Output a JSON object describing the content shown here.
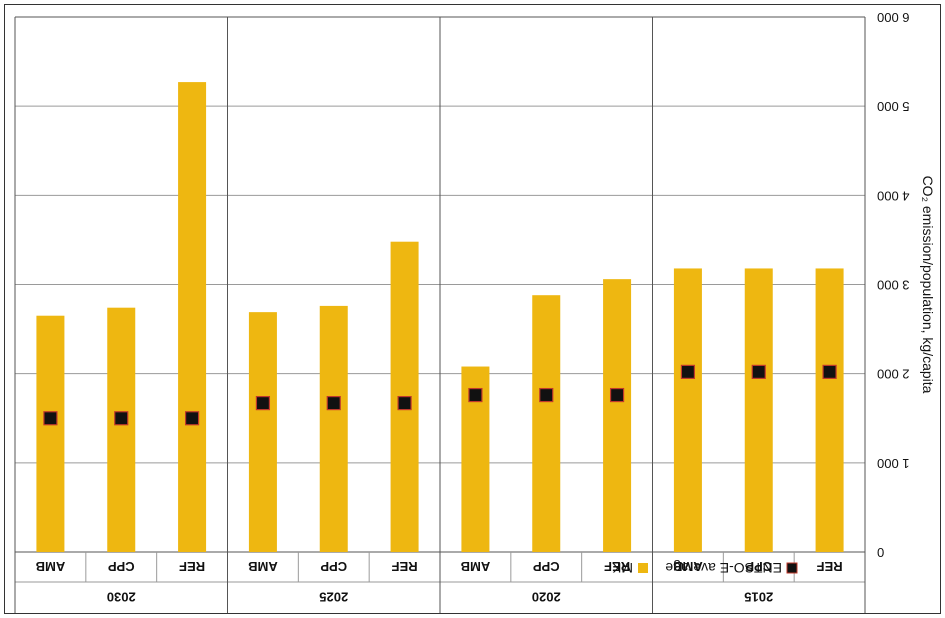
{
  "chart_data": {
    "type": "bar",
    "ylabel": "CO₂ emission/population, kg/capita",
    "ylim": [
      0,
      6000
    ],
    "yticks": [
      0,
      1000,
      2000,
      3000,
      4000,
      5000,
      6000
    ],
    "ytick_labels": [
      "0",
      "1 000",
      "2 000",
      "3 000",
      "4 000",
      "5 000",
      "6 000"
    ],
    "groups": [
      "2015",
      "2020",
      "2025",
      "2030"
    ],
    "categories": [
      "REF",
      "CPP",
      "AMB"
    ],
    "series": [
      {
        "name": "MK",
        "kind": "bar",
        "color": "#EEB711",
        "values": [
          [
            3180,
            3180,
            3180
          ],
          [
            3060,
            2880,
            2080
          ],
          [
            3480,
            2760,
            2690
          ],
          [
            5270,
            2740,
            2650
          ]
        ]
      },
      {
        "name": "ENTSO-E average",
        "kind": "marker",
        "color": "#111111",
        "edge_color": "#C0392B",
        "values": [
          [
            2020,
            2020,
            2020
          ],
          [
            1760,
            1760,
            1760
          ],
          [
            1670,
            1670,
            1670
          ],
          [
            1500,
            1500,
            1500
          ]
        ]
      }
    ],
    "legend_position": "bottom-right",
    "grid": true,
    "orientation": "flipped (rendered rotated 180 degrees)"
  }
}
